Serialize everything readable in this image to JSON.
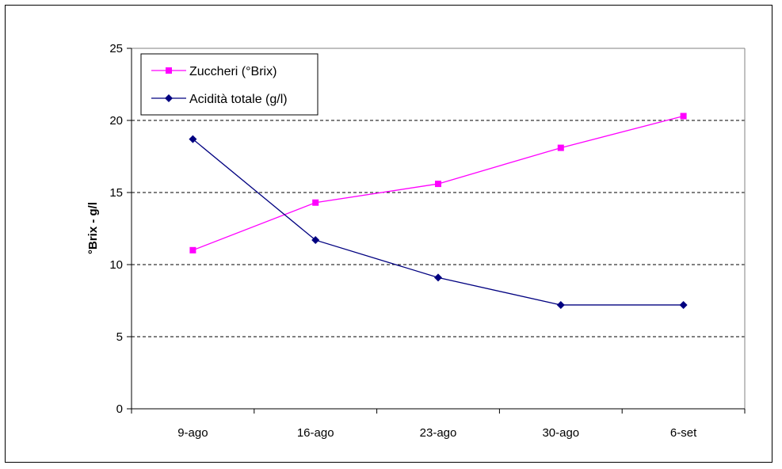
{
  "chart_data": {
    "type": "line",
    "title": "",
    "xlabel": "",
    "ylabel": "°Brix - g/l",
    "categories": [
      "9-ago",
      "16-ago",
      "23-ago",
      "30-ago",
      "6-set"
    ],
    "ylim": [
      0,
      25
    ],
    "yticks": [
      0,
      5,
      10,
      15,
      20,
      25
    ],
    "grid": "horizontal dashed",
    "legend_position": "top-left",
    "series": [
      {
        "name": "Zuccheri (°Brix)",
        "values": [
          11.0,
          14.3,
          15.6,
          18.1,
          20.3
        ],
        "color": "#ff00ff",
        "marker": "square"
      },
      {
        "name": "Acidità totale (g/l)",
        "values": [
          18.7,
          11.7,
          9.1,
          7.2,
          7.2
        ],
        "color": "#000080",
        "marker": "diamond"
      }
    ]
  }
}
